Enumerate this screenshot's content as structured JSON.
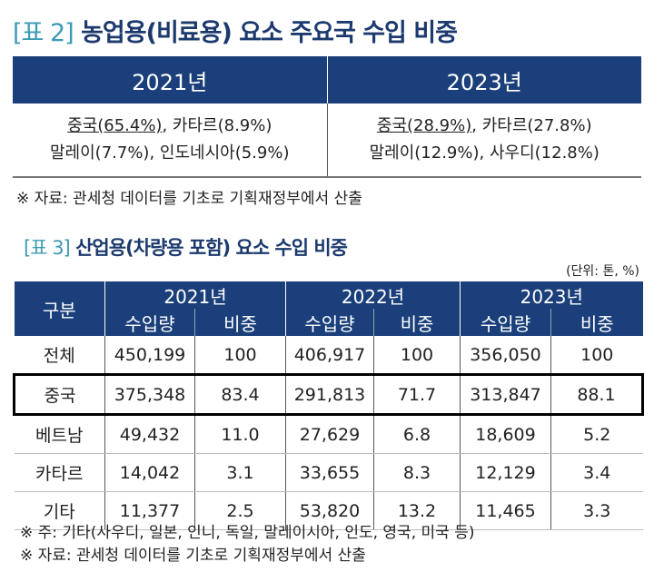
{
  "table2": {
    "tag": "[표 2]",
    "title": "농업용(비료용) 요소 주요국 수입 비중",
    "headers": [
      "2021년",
      "2023년"
    ],
    "col2021": {
      "first": "중국(65.4%)",
      "rest1": ", 카타르(8.9%)",
      "line2": "말레이(7.7%), 인도네시아(5.9%)"
    },
    "col2023": {
      "first": "중국(28.9%)",
      "rest1": ", 카타르(27.8%)",
      "line2": "말레이(12.9%), 사우디(12.8%)"
    },
    "source": "※ 자료:  관세청 데이터를 기초로 기획재정부에서 산출"
  },
  "table3": {
    "tag": "[표 3]",
    "title": "산업용(차량용 포함) 요소 수입 비중",
    "unit": "(단위: 톤, %)",
    "category_header": "구분",
    "years": [
      "2021년",
      "2022년",
      "2023년"
    ],
    "sub_headers": [
      "수입량",
      "비중"
    ],
    "rows": [
      {
        "label": "전체",
        "values": [
          "450,199",
          "100",
          "406,917",
          "100",
          "356,050",
          "100"
        ]
      },
      {
        "label": "중국",
        "values": [
          "375,348",
          "83.4",
          "291,813",
          "71.7",
          "313,847",
          "88.1"
        ]
      },
      {
        "label": "베트남",
        "values": [
          "49,432",
          "11.0",
          "27,629",
          "6.8",
          "18,609",
          "5.2"
        ]
      },
      {
        "label": "카타르",
        "values": [
          "14,042",
          "3.1",
          "33,655",
          "8.3",
          "12,129",
          "3.4"
        ]
      },
      {
        "label": "기타",
        "values": [
          "11,377",
          "2.5",
          "53,820",
          "13.2",
          "11,465",
          "3.3"
        ]
      }
    ],
    "note": "※ 주: 기타(사우디, 일본, 인니, 독일, 말레이시아, 인도, 영국, 미국 등)",
    "source": "※ 자료:  관세청 데이터를 기초로 기획재정부에서 산출"
  },
  "colors": {
    "header_bg": "#1a3f7a",
    "title": "#1c3a6e",
    "tag": "#3b9bb3"
  }
}
